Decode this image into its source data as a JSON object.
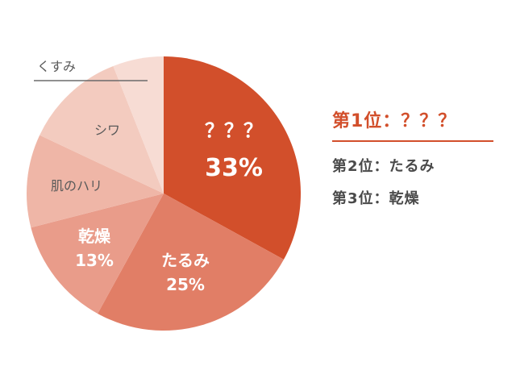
{
  "chart_data": {
    "type": "pie",
    "slices": [
      {
        "label": "？？？",
        "value_label": "33%",
        "value": 33,
        "color": "#d24f2b",
        "text_color": "#ffffff",
        "bold": true,
        "value_size": 30
      },
      {
        "label": "たるみ",
        "value_label": "25%",
        "value": 25,
        "color": "#e17e66",
        "text_color": "#ffffff",
        "bold": true,
        "value_size": 20
      },
      {
        "label": "乾燥",
        "value_label": "13%",
        "value": 13,
        "color": "#e99c8a",
        "text_color": "#ffffff",
        "bold": true,
        "value_size": 20
      },
      {
        "label": "肌のハリ",
        "value_label": "",
        "value": 11,
        "color": "#efb6a7",
        "text_color": "#5a5a5a",
        "bold": false,
        "value_size": 16
      },
      {
        "label": "シワ",
        "value_label": "",
        "value": 12,
        "color": "#f3cbbf",
        "text_color": "#5a5a5a",
        "bold": false,
        "value_size": 16
      },
      {
        "label": "くすみ",
        "value_label": "",
        "value": 6,
        "color": "#f7dcd4",
        "text_color": "#5a5a5a",
        "bold": false,
        "value_size": 16
      }
    ],
    "start_angle_deg": 0,
    "direction": "clockwise"
  },
  "ranking": {
    "first": "第1位：？？？",
    "second": "第2位：たるみ",
    "third": "第3位：乾燥"
  }
}
